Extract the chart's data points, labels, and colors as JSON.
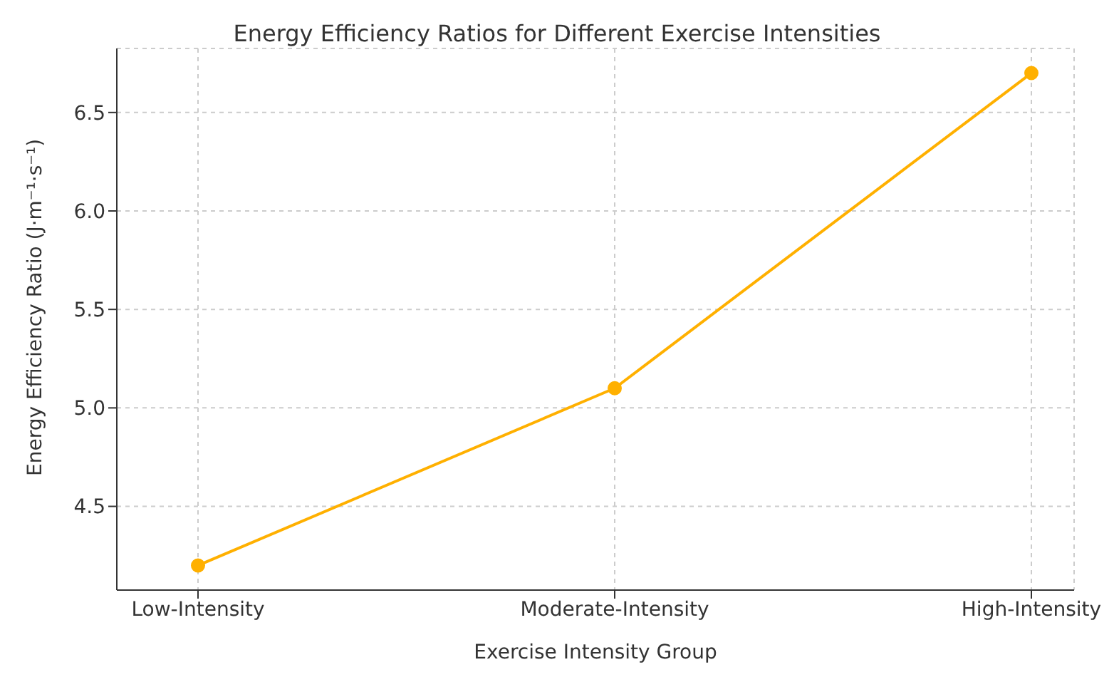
{
  "chart_data": {
    "type": "line",
    "title": "Energy Efficiency Ratios for Different Exercise Intensities",
    "xlabel": "Exercise Intensity Group",
    "ylabel": "Energy Efficiency Ratio (J·m⁻¹·s⁻¹)",
    "categories": [
      "Low-Intensity",
      "Moderate-Intensity",
      "High-Intensity"
    ],
    "series": [
      {
        "color": "#ffb000",
        "values": [
          4.2,
          5.1,
          6.7
        ]
      }
    ],
    "ylim": [
      4.075,
      6.825
    ],
    "yticks": [
      4.5,
      {
        "value": 5,
        "label": "5.0"
      },
      5.5,
      {
        "value": 6,
        "label": "6.0"
      },
      6.5
    ],
    "grid": true,
    "marker": "circle",
    "line_style": "solid"
  }
}
